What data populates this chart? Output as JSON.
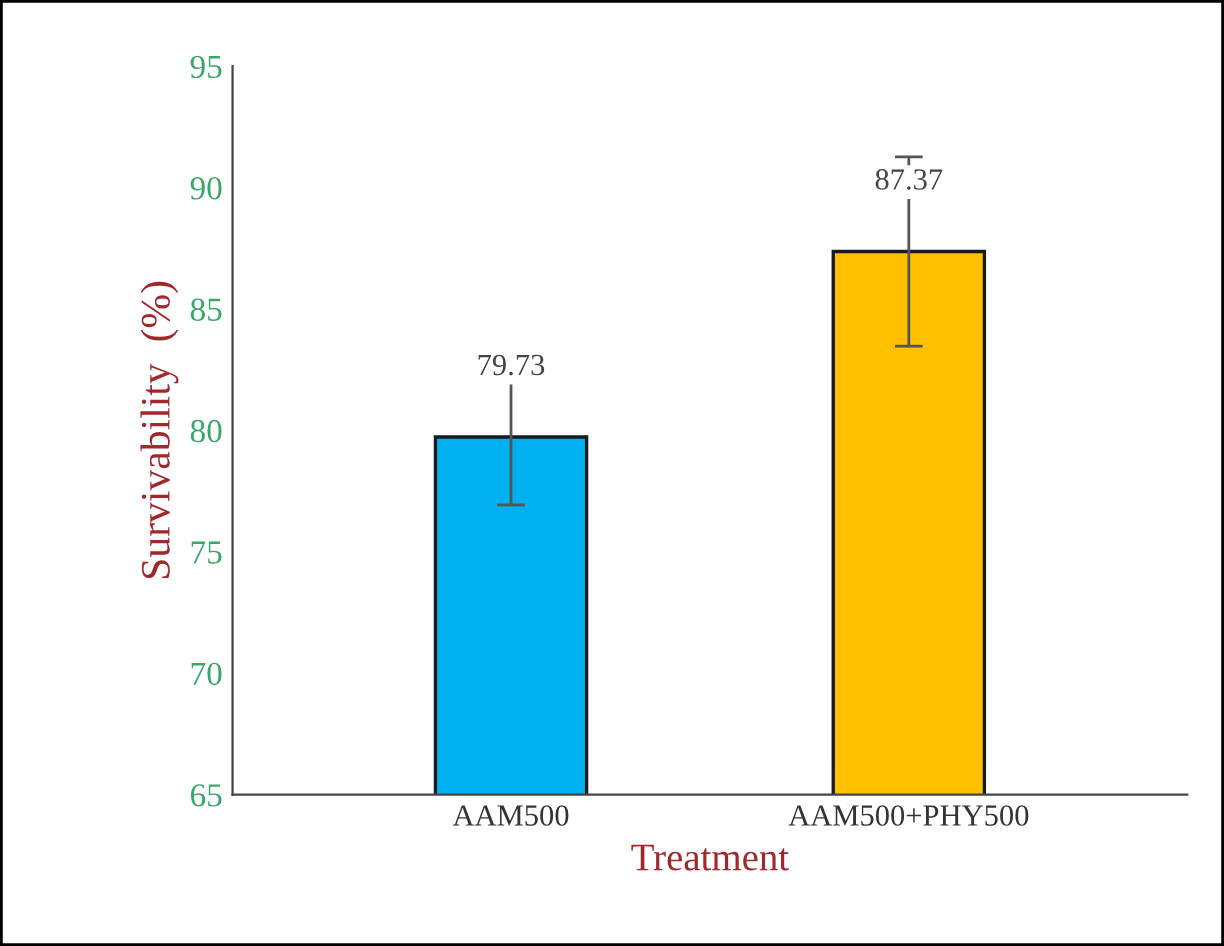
{
  "chart_data": {
    "type": "bar",
    "xlabel": "Treatment",
    "ylabel": "Survivability  (%)",
    "categories": [
      "AAM500",
      "AAM500+PHY500"
    ],
    "values": [
      79.73,
      87.37
    ],
    "colors": [
      "#00b0f0",
      "#ffc000"
    ],
    "errors": [
      2.8,
      3.9
    ],
    "data_labels": true,
    "ylim": [
      65,
      95
    ],
    "yticks": [
      65,
      70,
      75,
      80,
      85,
      90,
      95
    ],
    "grid": false
  }
}
